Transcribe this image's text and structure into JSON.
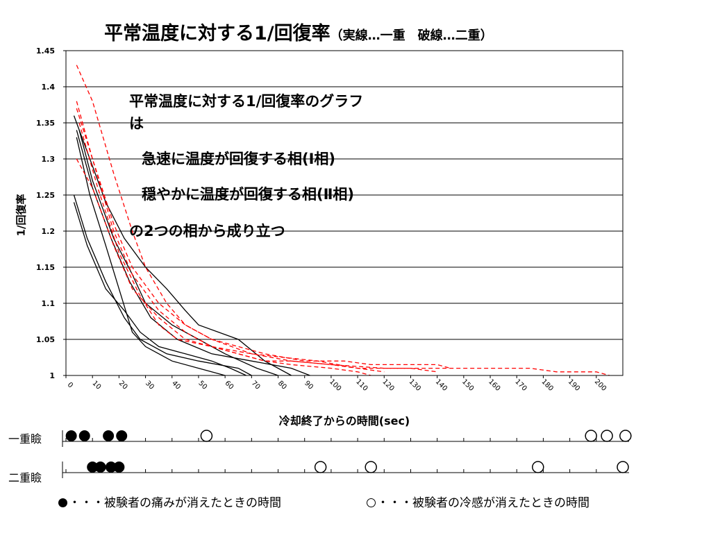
{
  "title": {
    "main": "平常温度に対する1/回復率",
    "sub": "（実線…一重　破線…二重）"
  },
  "annotation": {
    "line1": "平常温度に対する1/回復率のグラフ",
    "line2": "は",
    "line3": "急速に温度が回復する相(Ⅰ相)",
    "line4": "穏やかに温度が回復する相(Ⅱ相)",
    "line5": "の2つの相から成り立つ"
  },
  "bottom": {
    "row1_label": "一重瞼",
    "row2_label": "二重瞼",
    "legend_filled": "・・・被験者の痛みが消えたときの時間",
    "legend_hollow": "・・・被験者の冷感が消えたときの時間",
    "row1_filled": [
      2,
      7,
      16,
      21
    ],
    "row1_hollow": [
      53,
      198,
      204,
      211
    ],
    "row2_filled": [
      10,
      13,
      17,
      20
    ],
    "row2_hollow": [
      96,
      115,
      178,
      210
    ]
  },
  "chart_data": {
    "type": "line",
    "title": "平常温度に対する1/回復率（実線…一重　破線…二重）",
    "xlabel": "冷却終了からの時間(sec)",
    "ylabel": "1/回復率",
    "xlim": [
      0,
      210
    ],
    "ylim": [
      1,
      1.45
    ],
    "x_ticks": [
      0,
      10,
      20,
      30,
      40,
      50,
      60,
      70,
      80,
      90,
      100,
      110,
      120,
      130,
      140,
      150,
      160,
      170,
      180,
      190,
      200
    ],
    "y_ticks": [
      1,
      1.05,
      1.1,
      1.15,
      1.2,
      1.25,
      1.3,
      1.35,
      1.4,
      1.45
    ],
    "grid": true,
    "series": [
      {
        "style": "solid",
        "color": "#000000",
        "points": [
          [
            3,
            1.36
          ],
          [
            8,
            1.31
          ],
          [
            15,
            1.24
          ],
          [
            22,
            1.19
          ],
          [
            30,
            1.15
          ],
          [
            38,
            1.12
          ],
          [
            45,
            1.09
          ],
          [
            50,
            1.07
          ],
          [
            65,
            1.05
          ],
          [
            75,
            1.02
          ],
          [
            85,
            1.0
          ]
        ]
      },
      {
        "style": "solid",
        "color": "#000000",
        "points": [
          [
            5,
            1.34
          ],
          [
            10,
            1.27
          ],
          [
            18,
            1.19
          ],
          [
            25,
            1.14
          ],
          [
            30,
            1.1
          ],
          [
            40,
            1.07
          ],
          [
            50,
            1.05
          ],
          [
            60,
            1.03
          ],
          [
            72,
            1.01
          ],
          [
            80,
            1.0
          ]
        ]
      },
      {
        "style": "solid",
        "color": "#000000",
        "points": [
          [
            3,
            1.25
          ],
          [
            8,
            1.19
          ],
          [
            15,
            1.13
          ],
          [
            22,
            1.08
          ],
          [
            28,
            1.05
          ],
          [
            38,
            1.03
          ],
          [
            50,
            1.02
          ],
          [
            65,
            1.01
          ],
          [
            70,
            1.0
          ]
        ]
      },
      {
        "style": "solid",
        "color": "#000000",
        "points": [
          [
            3,
            1.24
          ],
          [
            8,
            1.18
          ],
          [
            15,
            1.12
          ],
          [
            22,
            1.09
          ],
          [
            28,
            1.06
          ],
          [
            35,
            1.04
          ],
          [
            45,
            1.03
          ],
          [
            55,
            1.02
          ],
          [
            62,
            1.01
          ],
          [
            68,
            1.0
          ]
        ]
      },
      {
        "style": "solid",
        "color": "#000000",
        "points": [
          [
            4,
            1.33
          ],
          [
            9,
            1.25
          ],
          [
            15,
            1.18
          ],
          [
            20,
            1.12
          ],
          [
            25,
            1.06
          ],
          [
            30,
            1.04
          ],
          [
            40,
            1.02
          ],
          [
            50,
            1.01
          ],
          [
            60,
            1.0
          ]
        ]
      },
      {
        "style": "solid",
        "color": "#000000",
        "points": [
          [
            4,
            1.34
          ],
          [
            10,
            1.26
          ],
          [
            17,
            1.19
          ],
          [
            24,
            1.13
          ],
          [
            32,
            1.08
          ],
          [
            42,
            1.05
          ],
          [
            55,
            1.03
          ],
          [
            70,
            1.02
          ],
          [
            85,
            1.01
          ],
          [
            92,
            1.0
          ]
        ]
      },
      {
        "style": "dashed",
        "color": "#ff0000",
        "points": [
          [
            4,
            1.43
          ],
          [
            10,
            1.38
          ],
          [
            18,
            1.28
          ],
          [
            25,
            1.2
          ],
          [
            30,
            1.15
          ],
          [
            38,
            1.1
          ],
          [
            45,
            1.07
          ],
          [
            55,
            1.05
          ],
          [
            70,
            1.03
          ],
          [
            85,
            1.02
          ],
          [
            100,
            1.015
          ],
          [
            120,
            1.01
          ],
          [
            140,
            1.01
          ],
          [
            160,
            1.01
          ],
          [
            175,
            1.01
          ],
          [
            185,
            1.005
          ],
          [
            200,
            1.005
          ],
          [
            205,
            1.0
          ]
        ]
      },
      {
        "style": "dashed",
        "color": "#ff0000",
        "points": [
          [
            4,
            1.38
          ],
          [
            10,
            1.3
          ],
          [
            18,
            1.21
          ],
          [
            25,
            1.15
          ],
          [
            35,
            1.1
          ],
          [
            45,
            1.07
          ],
          [
            55,
            1.05
          ],
          [
            65,
            1.04
          ],
          [
            75,
            1.03
          ],
          [
            90,
            1.02
          ],
          [
            105,
            1.02
          ],
          [
            115,
            1.015
          ],
          [
            140,
            1.015
          ],
          [
            145,
            1.01
          ]
        ]
      },
      {
        "style": "dashed",
        "color": "#ff0000",
        "points": [
          [
            4,
            1.37
          ],
          [
            10,
            1.3
          ],
          [
            18,
            1.2
          ],
          [
            25,
            1.14
          ],
          [
            35,
            1.09
          ],
          [
            45,
            1.06
          ],
          [
            55,
            1.04
          ],
          [
            65,
            1.03
          ],
          [
            75,
            1.02
          ],
          [
            85,
            1.02
          ],
          [
            100,
            1.015
          ],
          [
            110,
            1.01
          ],
          [
            130,
            1.01
          ],
          [
            140,
            1.005
          ]
        ]
      },
      {
        "style": "dashed",
        "color": "#ff0000",
        "points": [
          [
            4,
            1.3
          ],
          [
            10,
            1.26
          ],
          [
            18,
            1.18
          ],
          [
            25,
            1.12
          ],
          [
            35,
            1.08
          ],
          [
            45,
            1.05
          ],
          [
            55,
            1.04
          ],
          [
            65,
            1.03
          ],
          [
            75,
            1.02
          ],
          [
            85,
            1.015
          ],
          [
            100,
            1.01
          ],
          [
            110,
            1.005
          ],
          [
            115,
            1.0
          ]
        ]
      },
      {
        "style": "dashed",
        "color": "#ff0000",
        "points": [
          [
            5,
            1.35
          ],
          [
            12,
            1.26
          ],
          [
            20,
            1.17
          ],
          [
            28,
            1.11
          ],
          [
            35,
            1.07
          ],
          [
            42,
            1.05
          ],
          [
            55,
            1.04
          ],
          [
            70,
            1.03
          ],
          [
            82,
            1.025
          ],
          [
            95,
            1.02
          ],
          [
            110,
            1.01
          ],
          [
            120,
            1.005
          ]
        ]
      }
    ]
  }
}
